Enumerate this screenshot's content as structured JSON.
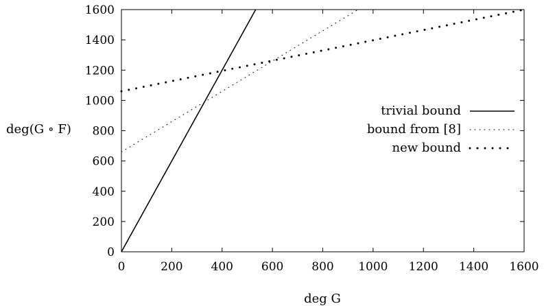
{
  "chart_data": {
    "type": "line",
    "xlabel": "deg G",
    "ylabel": "deg(G ∘ F)",
    "xlim": [
      0,
      1600
    ],
    "ylim": [
      0,
      1600
    ],
    "xticks": [
      "0",
      "200",
      "400",
      "600",
      "800",
      "1000",
      "1200",
      "1400",
      "1600"
    ],
    "yticks": [
      "0",
      "200",
      "400",
      "600",
      "800",
      "1000",
      "1200",
      "1400",
      "1600"
    ],
    "grid": false,
    "legend_position": "right",
    "series": [
      {
        "name": "trivial bound",
        "style": "solid",
        "x": [
          0,
          533.33
        ],
        "y": [
          0,
          1600
        ]
      },
      {
        "name": "bound from [8]",
        "style": "sparse-dotted",
        "x": [
          0,
          940
        ],
        "y": [
          660,
          1600
        ]
      },
      {
        "name": "new bound",
        "style": "dotted",
        "x": [
          0,
          1600
        ],
        "y": [
          1060,
          1600
        ]
      }
    ]
  }
}
